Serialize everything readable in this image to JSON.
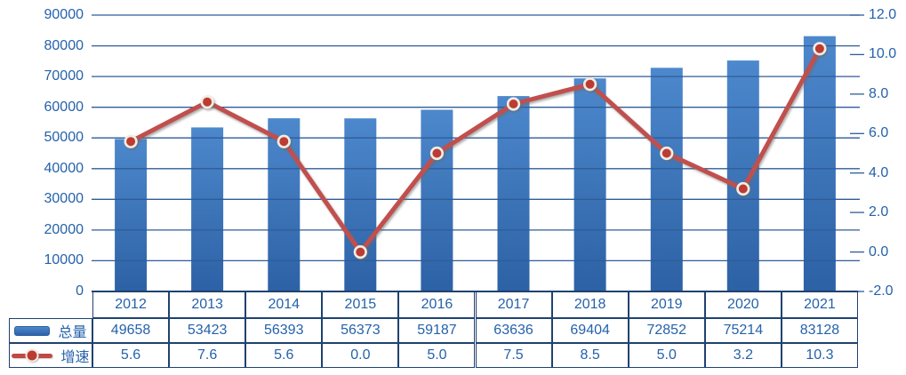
{
  "chart_data": {
    "type": "combo",
    "categories": [
      "2012",
      "2013",
      "2014",
      "2015",
      "2016",
      "2017",
      "2018",
      "2019",
      "2020",
      "2021"
    ],
    "series": [
      {
        "name": "总量",
        "type": "bar",
        "axis": "left",
        "values": [
          49658,
          53423,
          56393,
          56373,
          59187,
          63636,
          69404,
          72852,
          75214,
          83128
        ]
      },
      {
        "name": "增速",
        "type": "line",
        "axis": "right",
        "values": [
          5.6,
          7.6,
          5.6,
          0.0,
          5.0,
          7.5,
          8.5,
          5.0,
          3.2,
          10.3
        ]
      }
    ],
    "left_axis": {
      "min": 0,
      "max": 90000,
      "step": 10000,
      "labels": [
        "0",
        "10000",
        "20000",
        "30000",
        "40000",
        "50000",
        "60000",
        "70000",
        "80000",
        "90000"
      ]
    },
    "right_axis": {
      "min": -2.0,
      "max": 12.0,
      "step": 2.0,
      "labels": [
        "-2.0",
        "0.0",
        "2.0",
        "4.0",
        "6.0",
        "8.0",
        "10.0",
        "12.0"
      ]
    },
    "grid": true,
    "legend_position": "table-left",
    "title": "",
    "table": {
      "header_row": [
        "2012",
        "2013",
        "2014",
        "2015",
        "2016",
        "2017",
        "2018",
        "2019",
        "2020",
        "2021"
      ],
      "rows": [
        {
          "label": "总量",
          "legend": "bar-swatch",
          "values": [
            "49658",
            "53423",
            "56393",
            "56373",
            "59187",
            "63636",
            "69404",
            "72852",
            "75214",
            "83128"
          ]
        },
        {
          "label": "增速",
          "legend": "line-marker-swatch",
          "values": [
            "5.6",
            "7.6",
            "5.6",
            "0.0",
            "5.0",
            "7.5",
            "8.5",
            "5.0",
            "3.2",
            "10.3"
          ]
        }
      ]
    },
    "colors": {
      "bar_top": "#4d88cc",
      "bar_bottom": "#2d61a5",
      "line": "#c0504d",
      "marker_fill": "#bc3a31",
      "marker_ring": "#f1ece2",
      "gridline": "#2e5c99",
      "axis_text": "#2462ab",
      "table_border": "#1f4270",
      "axis_line": "#1f4270"
    }
  }
}
